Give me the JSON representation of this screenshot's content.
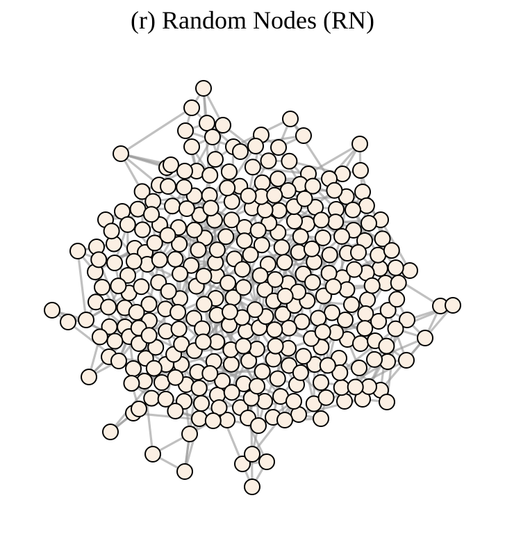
{
  "figure": {
    "title": "(r) Random Nodes (RN)",
    "node_fill": "#fbefe3",
    "node_stroke": "#000000",
    "edge_color": "#9a9a9a",
    "layout": "force-directed network"
  }
}
